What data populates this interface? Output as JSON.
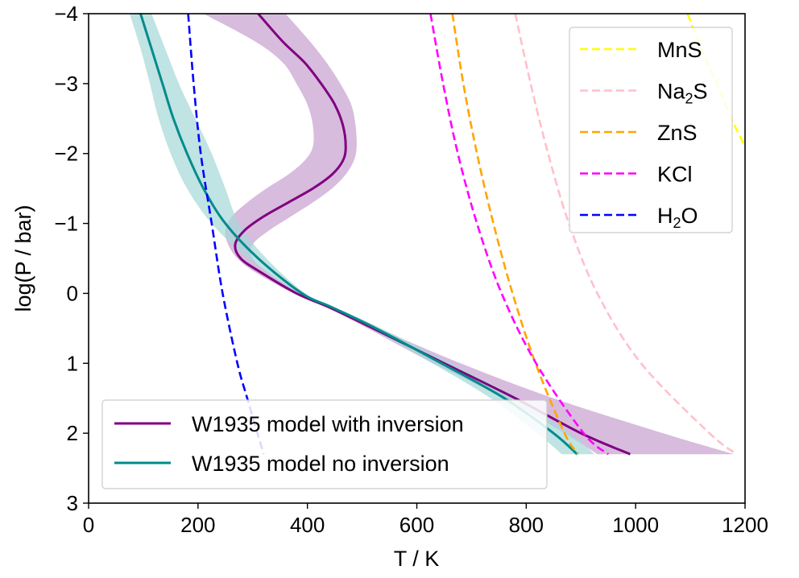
{
  "chart_data": {
    "type": "line",
    "xlabel": "T / K",
    "ylabel": "log(P / bar)",
    "xlim": [
      0,
      1200
    ],
    "ylim": [
      3,
      -4
    ],
    "y_inverted": true,
    "x_ticks": [
      0,
      200,
      400,
      600,
      800,
      1000,
      1200
    ],
    "y_ticks": [
      -4,
      -3,
      -2,
      -1,
      0,
      1,
      2,
      3
    ],
    "y_tick_labels": [
      "−4",
      "−3",
      "−2",
      "−1",
      "0",
      "1",
      "2",
      "3"
    ],
    "grid": false,
    "series": [
      {
        "name": "W1935 model with inversion",
        "color": "#800080",
        "style": "solid",
        "logP": [
          -4.0,
          -3.6,
          -3.3,
          -3.0,
          -2.7,
          -2.4,
          -2.1,
          -1.9,
          -1.7,
          -1.5,
          -1.3,
          -1.1,
          -0.9,
          -0.7,
          -0.5,
          -0.3,
          0.0,
          0.2,
          0.5,
          1.0,
          1.5,
          2.0,
          2.3
        ],
        "T": [
          310,
          355,
          395,
          425,
          450,
          465,
          470,
          465,
          445,
          410,
          365,
          320,
          285,
          268,
          278,
          315,
          380,
          440,
          520,
          650,
          780,
          900,
          990
        ],
        "band_low": [
          210,
          305,
          355,
          380,
          400,
          410,
          410,
          395,
          365,
          325,
          290,
          262,
          250,
          255,
          272,
          305,
          375,
          435,
          510,
          630,
          760,
          870,
          930
        ],
        "band_high": [
          360,
          405,
          435,
          460,
          480,
          488,
          490,
          485,
          470,
          445,
          410,
          370,
          330,
          300,
          300,
          328,
          388,
          445,
          530,
          680,
          850,
          1050,
          1180
        ]
      },
      {
        "name": "W1935 model no inversion",
        "color": "#008B8B",
        "style": "solid",
        "logP": [
          -4.0,
          -3.5,
          -3.0,
          -2.5,
          -2.0,
          -1.5,
          -1.0,
          -0.5,
          0.0,
          0.2,
          0.5,
          1.0,
          1.5,
          2.0,
          2.3
        ],
        "T": [
          95,
          115,
          135,
          155,
          180,
          210,
          250,
          310,
          390,
          445,
          525,
          645,
          760,
          850,
          893
        ],
        "band_low": [
          75,
          95,
          112,
          128,
          150,
          180,
          225,
          292,
          384,
          440,
          515,
          628,
          735,
          820,
          865
        ],
        "band_high": [
          115,
          140,
          165,
          195,
          225,
          250,
          275,
          325,
          396,
          450,
          535,
          662,
          785,
          880,
          925
        ]
      },
      {
        "name": "MnS",
        "color": "#FFFF00",
        "style": "dashed",
        "logP": [
          -4.0,
          -3.5,
          -3.0,
          -2.5,
          -2.1
        ],
        "T": [
          1095,
          1120,
          1148,
          1175,
          1200
        ]
      },
      {
        "name": "Na₂S",
        "color": "#FFC0CB",
        "style": "dashed",
        "logP": [
          -4.0,
          -3.0,
          -2.0,
          -1.0,
          0.0,
          1.0,
          2.0,
          2.3
        ],
        "T": [
          780,
          808,
          840,
          878,
          930,
          1010,
          1135,
          1185
        ]
      },
      {
        "name": "ZnS",
        "color": "#FFA500",
        "style": "dashed",
        "logP": [
          -4.0,
          -3.0,
          -2.0,
          -1.0,
          0.0,
          1.0,
          2.0,
          2.3
        ],
        "T": [
          665,
          685,
          710,
          740,
          775,
          817,
          870,
          895
        ]
      },
      {
        "name": "KCl",
        "color": "#FF00FF",
        "style": "dashed",
        "logP": [
          -4.0,
          -3.0,
          -2.0,
          -1.0,
          0.0,
          1.0,
          2.0,
          2.3
        ],
        "T": [
          625,
          648,
          675,
          710,
          755,
          818,
          905,
          950
        ]
      },
      {
        "name": "H₂O",
        "color": "#0000FF",
        "style": "dashed",
        "logP": [
          -4.0,
          -3.0,
          -2.0,
          -1.0,
          0.0,
          1.0,
          1.5,
          2.3
        ],
        "T": [
          182,
          192,
          205,
          225,
          245,
          272,
          290,
          320
        ]
      }
    ],
    "legends": [
      {
        "placement": "top-right",
        "entries": [
          {
            "label": "MnS",
            "color": "#FFFF00",
            "style": "dashed"
          },
          {
            "label": "Na₂S",
            "color": "#FFC0CB",
            "style": "dashed"
          },
          {
            "label": "ZnS",
            "color": "#FFA500",
            "style": "dashed"
          },
          {
            "label": "KCl",
            "color": "#FF00FF",
            "style": "dashed"
          },
          {
            "label": "H₂O",
            "color": "#0000FF",
            "style": "dashed"
          }
        ]
      },
      {
        "placement": "bottom-left",
        "entries": [
          {
            "label": "W1935 model with inversion",
            "color": "#800080",
            "style": "solid"
          },
          {
            "label": "W1935 model no inversion",
            "color": "#008B8B",
            "style": "solid"
          }
        ]
      }
    ]
  }
}
